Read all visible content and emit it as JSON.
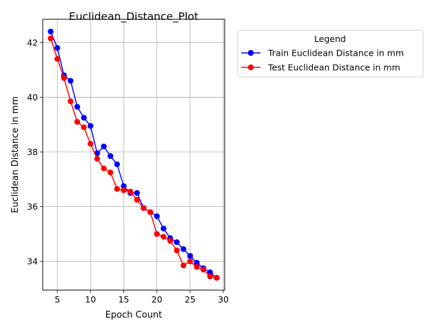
{
  "chart_data": {
    "type": "line",
    "title": "Euclidean_Distance_Plot",
    "xlabel": "Epoch Count",
    "ylabel": "Euclidean Distance in mm",
    "xlim": [
      2.8,
      30.2
    ],
    "ylim": [
      32.95,
      42.85
    ],
    "xticks": [
      5,
      10,
      15,
      20,
      25,
      30
    ],
    "yticks": [
      34,
      36,
      38,
      40,
      42
    ],
    "grid": true,
    "legend": {
      "title": "Legend",
      "placement": "outside-right"
    },
    "x": [
      4,
      5,
      6,
      7,
      8,
      9,
      10,
      11,
      12,
      13,
      14,
      15,
      16,
      17,
      18,
      19,
      20,
      21,
      22,
      23,
      24,
      25,
      26,
      27,
      28,
      29
    ],
    "series": [
      {
        "name": "Train Euclidean Distance in mm",
        "color": "#0000ff",
        "values": [
          42.4,
          41.8,
          40.8,
          40.6,
          39.65,
          39.25,
          38.95,
          37.95,
          38.2,
          37.85,
          37.55,
          36.75,
          36.5,
          36.5,
          35.95,
          35.8,
          35.65,
          35.2,
          34.85,
          34.7,
          34.45,
          34.2,
          33.95,
          33.75,
          33.6,
          33.4
        ]
      },
      {
        "name": "Test Euclidean Distance in mm",
        "color": "#ff0000",
        "values": [
          42.15,
          41.4,
          40.7,
          39.85,
          39.1,
          38.9,
          38.3,
          37.75,
          37.4,
          37.25,
          36.65,
          36.6,
          36.55,
          36.25,
          35.95,
          35.8,
          35.0,
          34.9,
          34.75,
          34.4,
          33.85,
          34.0,
          33.8,
          33.7,
          33.45,
          33.4
        ]
      }
    ]
  }
}
